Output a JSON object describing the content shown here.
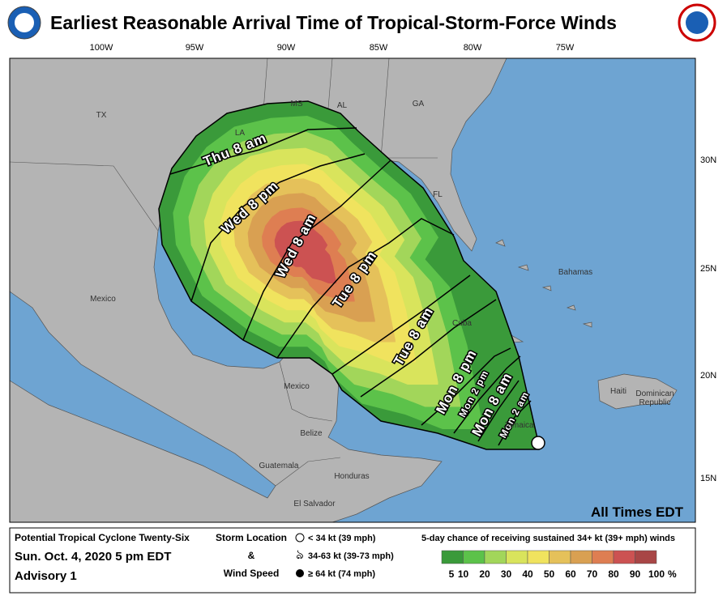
{
  "header": {
    "title": "Earliest Reasonable Arrival Time of Tropical-Storm-Force Winds"
  },
  "map": {
    "lon_labels": [
      "100W",
      "95W",
      "90W",
      "85W",
      "80W",
      "75W"
    ],
    "lat_labels": [
      "30N",
      "25N",
      "20N",
      "15N"
    ],
    "places": [
      "TX",
      "MS",
      "AL",
      "GA",
      "LA",
      "FL",
      "Mexico",
      "Bahamas",
      "Cuba",
      "Mexico",
      "Haiti",
      "Dominican",
      "Republic",
      "Jamaica",
      "Belize",
      "Guatemala",
      "Honduras",
      "El Salvador"
    ],
    "arrival_times": [
      "Thu 8 am",
      "Wed 8 pm",
      "Wed 8 am",
      "Tue 8 pm",
      "Tue 8 am",
      "Mon 8 pm",
      "Mon 2 pm",
      "Mon 8 am",
      "Mon 2 am"
    ],
    "note": "All Times EDT"
  },
  "legend": {
    "storm_name": "Potential Tropical Cyclone Twenty-Six",
    "date": "Sun. Oct. 4, 2020  5 pm EDT",
    "advisory": "Advisory 1",
    "storm_location": "Storm Location",
    "and": "&",
    "wind_speed": "Wind Speed",
    "symbols": [
      "< 34 kt (39 mph)",
      "34-63 kt (39-73 mph)",
      "≥ 64 kt (74 mph)"
    ],
    "scale_title": "5-day chance of receiving sustained 34+ kt (39+ mph) winds",
    "scale_labels": [
      "5",
      "10",
      "20",
      "30",
      "40",
      "50",
      "60",
      "70",
      "80",
      "90",
      "100"
    ],
    "percent": "%",
    "colors": [
      "#3a9a3a",
      "#5cc24a",
      "#a2d65a",
      "#d9e45c",
      "#f0e35e",
      "#e5c15a",
      "#d9a052",
      "#de7e52",
      "#cc5252",
      "#a84646"
    ]
  }
}
